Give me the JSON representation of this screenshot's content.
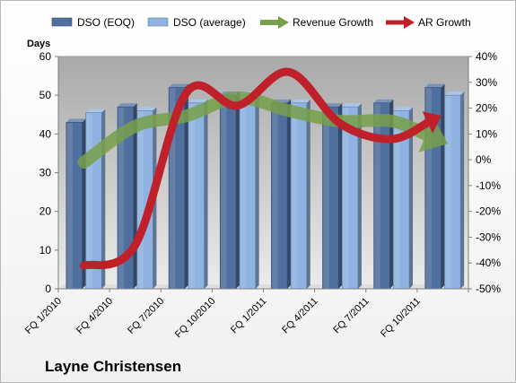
{
  "company": "Layne Christensen",
  "chart_data": {
    "type": "bar",
    "categories": [
      "FQ 1/2010",
      "FQ 4/2010",
      "FQ 7/2010",
      "FQ 10/2010",
      "FQ 1/2011",
      "FQ 4/2011",
      "FQ 7/2011",
      "FQ 10/2011"
    ],
    "ylabel": "Days",
    "ylim": [
      0,
      60
    ],
    "yticks": [
      0,
      10,
      20,
      30,
      40,
      50,
      60
    ],
    "y2lim": [
      -0.5,
      0.4
    ],
    "y2ticks": [
      "-50%",
      "-40%",
      "-30%",
      "-20%",
      "-10%",
      "0%",
      "10%",
      "20%",
      "30%",
      "40%"
    ],
    "legend_position": "top",
    "grid": false,
    "series": [
      {
        "name": "DSO (EOQ)",
        "type": "bar",
        "axis": "left",
        "color": "#4f6f9e",
        "values": [
          43,
          47,
          52,
          50,
          48,
          47,
          48,
          52
        ]
      },
      {
        "name": "DSO (average)",
        "type": "bar",
        "axis": "left",
        "color": "#8fb2e0",
        "values": [
          45.5,
          46,
          48,
          50,
          48,
          47,
          46,
          50
        ]
      },
      {
        "name": "Revenue Growth",
        "type": "line",
        "axis": "right",
        "color": "#77a04a",
        "values": [
          -0.01,
          0.13,
          0.17,
          0.24,
          0.19,
          0.15,
          0.15,
          0.09
        ]
      },
      {
        "name": "AR Growth",
        "type": "line",
        "axis": "right",
        "color": "#c0202a",
        "values": [
          -0.41,
          -0.33,
          0.26,
          0.21,
          0.34,
          0.14,
          0.08,
          0.15
        ]
      }
    ]
  }
}
